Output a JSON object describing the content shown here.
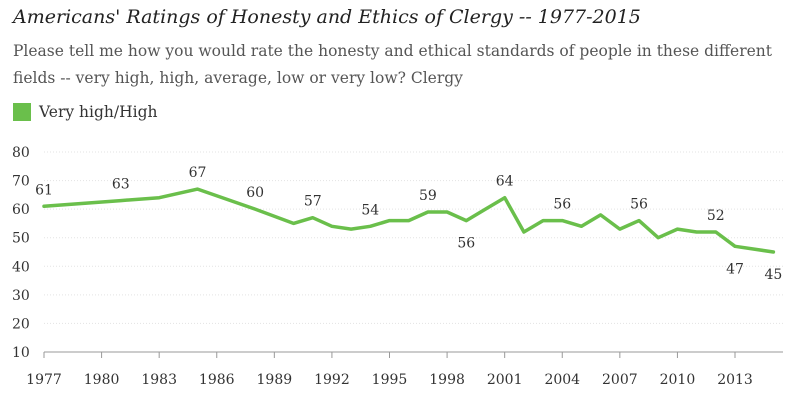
{
  "chart_data": {
    "type": "line",
    "title": "Americans' Ratings of Honesty and Ethics of Clergy -- 1977-2015",
    "subtitle": "Please tell me how you would rate the honesty and ethical standards of people in these different fields -- very high, high, average, low or very low? Clergy",
    "xlabel": "",
    "ylabel": "",
    "ylim": [
      10,
      80
    ],
    "xlim": [
      1977,
      2015.5
    ],
    "yticks": [
      10,
      20,
      30,
      40,
      50,
      60,
      70,
      80
    ],
    "xticks": [
      1977,
      1980,
      1983,
      1986,
      1989,
      1992,
      1995,
      1998,
      2001,
      2004,
      2007,
      2010,
      2013
    ],
    "grid": true,
    "legend_position": "top-left",
    "color": "#6abf4b",
    "series": [
      {
        "name": "Very high/High",
        "x": [
          1977,
          1981,
          1983,
          1985,
          1988,
          1990,
          1991,
          1992,
          1993,
          1994,
          1995,
          1996,
          1997,
          1998,
          1999,
          2000,
          2001,
          2002,
          2003,
          2004,
          2005,
          2006,
          2007,
          2008,
          2009,
          2010,
          2011,
          2012,
          2013,
          2015
        ],
        "values": [
          61,
          63,
          64,
          67,
          60,
          55,
          57,
          54,
          53,
          54,
          56,
          56,
          59,
          59,
          56,
          60,
          64,
          52,
          56,
          56,
          54,
          58,
          53,
          56,
          50,
          53,
          52,
          52,
          47,
          45
        ]
      }
    ],
    "data_labels": [
      {
        "x": 1977,
        "y": 61,
        "text": "61",
        "pos": "above"
      },
      {
        "x": 1981,
        "y": 63,
        "text": "63",
        "pos": "above"
      },
      {
        "x": 1985,
        "y": 67,
        "text": "67",
        "pos": "above"
      },
      {
        "x": 1988,
        "y": 60,
        "text": "60",
        "pos": "above"
      },
      {
        "x": 1991,
        "y": 57,
        "text": "57",
        "pos": "above"
      },
      {
        "x": 1994,
        "y": 54,
        "text": "54",
        "pos": "above"
      },
      {
        "x": 1997,
        "y": 59,
        "text": "59",
        "pos": "above"
      },
      {
        "x": 1999,
        "y": 56,
        "text": "56",
        "pos": "below"
      },
      {
        "x": 2001,
        "y": 64,
        "text": "64",
        "pos": "above"
      },
      {
        "x": 2004,
        "y": 56,
        "text": "56",
        "pos": "above"
      },
      {
        "x": 2008,
        "y": 56,
        "text": "56",
        "pos": "above"
      },
      {
        "x": 2012,
        "y": 52,
        "text": "52",
        "pos": "above"
      },
      {
        "x": 2013,
        "y": 47,
        "text": "47",
        "pos": "below"
      },
      {
        "x": 2015,
        "y": 45,
        "text": "45",
        "pos": "below"
      }
    ]
  }
}
